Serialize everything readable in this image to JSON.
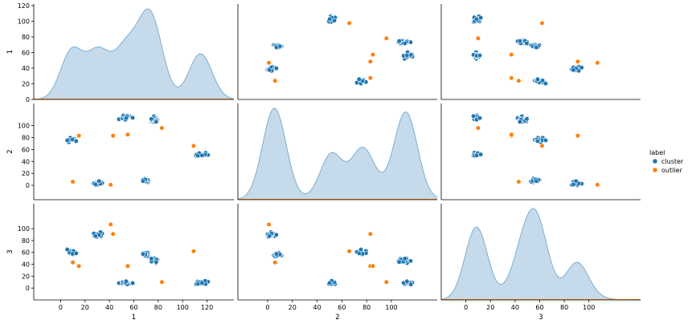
{
  "chart_data": {
    "type": "pairplot",
    "variables": [
      "1",
      "2",
      "3"
    ],
    "axis_ticks": {
      "1": [
        0,
        20,
        40,
        60,
        80,
        100,
        120
      ],
      "2": [
        0,
        20,
        40,
        60,
        80,
        100
      ],
      "3": [
        0,
        20,
        40,
        60,
        80,
        100
      ]
    },
    "axis_ranges": {
      "1": [
        -22,
        142
      ],
      "2": [
        -24,
        137
      ],
      "3": [
        -20,
        142
      ]
    },
    "tick_labels": {
      "1": [
        "0",
        "20",
        "40",
        "60",
        "80",
        "100",
        "120"
      ],
      "2": [
        "0",
        "20",
        "40",
        "60",
        "80",
        "100"
      ],
      "3": [
        "0",
        "20",
        "40",
        "60",
        "80",
        "100"
      ]
    },
    "axis_labels": {
      "1": "1",
      "2": "2",
      "3": "3"
    },
    "legend": {
      "title": "label",
      "placement": "right",
      "entries": [
        {
          "name": "cluster",
          "color": "#1f77b4"
        },
        {
          "name": "outlier",
          "color": "#ff7f0e"
        }
      ]
    },
    "kde_fill": "#a6c8e0",
    "kde_line": "#7fadd1",
    "clusters": [
      {
        "name": "cluster",
        "center": [
          8,
          76,
          60
        ],
        "spread": [
          2.2,
          2.0,
          2.0
        ],
        "count": 20
      },
      {
        "name": "cluster",
        "center": [
          31,
          3,
          90
        ],
        "spread": [
          2.2,
          1.6,
          2.0
        ],
        "count": 20
      },
      {
        "name": "cluster",
        "center": [
          53,
          115,
          8
        ],
        "spread": [
          2.2,
          2.0,
          1.6
        ],
        "count": 20
      },
      {
        "name": "cluster",
        "center": [
          70,
          8,
          56
        ],
        "spread": [
          2.2,
          1.6,
          1.8
        ],
        "count": 20
      },
      {
        "name": "cluster",
        "center": [
          77,
          110,
          46
        ],
        "spread": [
          2.2,
          2.0,
          1.8
        ],
        "count": 20
      },
      {
        "name": "cluster",
        "center": [
          115,
          52,
          8
        ],
        "spread": [
          2.5,
          2.0,
          1.6
        ],
        "count": 20
      }
    ],
    "outliers": [
      [
        10,
        6,
        43
      ],
      [
        15,
        83,
        37
      ],
      [
        41,
        1,
        107
      ],
      [
        43,
        83,
        91
      ],
      [
        55,
        85,
        37
      ],
      [
        83,
        96,
        10
      ],
      [
        109,
        66,
        62
      ]
    ]
  }
}
